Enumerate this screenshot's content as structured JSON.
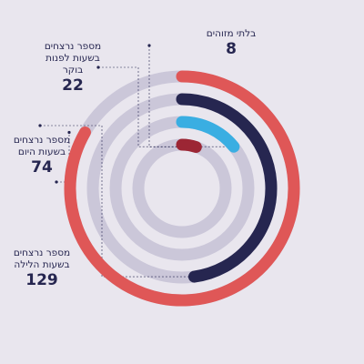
{
  "chart_data": {
    "type": "radial-bar",
    "title": "",
    "background": "#e9e6ee",
    "track_color": "#cbc7d9",
    "series": [
      {
        "name": "מספר נרצחים בשעות הלילה",
        "value": 129,
        "color": "#df5757"
      },
      {
        "name": "מספר נרצחים בשעות היום",
        "value": 74,
        "color": "#262650"
      },
      {
        "name": "מספר נרצחים בשעות לפנות בוקר",
        "value": 22,
        "color": "#3aaee2"
      },
      {
        "name": "בלתי מזוהים",
        "value": 8,
        "color": "#9c2634"
      }
    ]
  }
}
